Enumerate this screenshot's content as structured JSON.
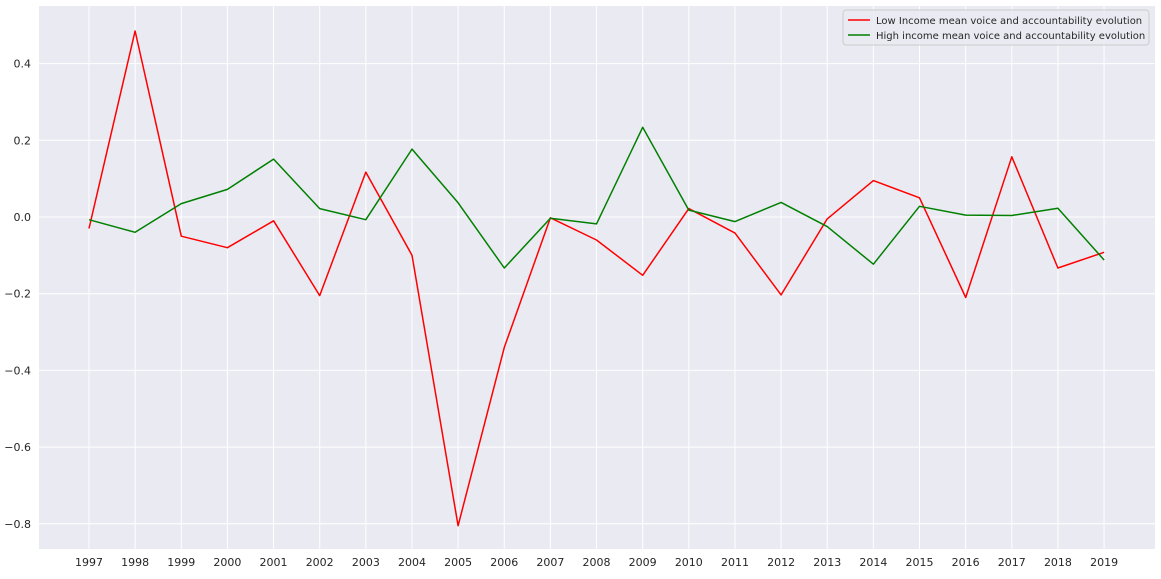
{
  "chart_data": {
    "type": "line",
    "title": "",
    "xlabel": "",
    "ylabel": "",
    "categories": [
      "1997",
      "1998",
      "1999",
      "2000",
      "2001",
      "2002",
      "2003",
      "2004",
      "2005",
      "2006",
      "2007",
      "2008",
      "2009",
      "2010",
      "2011",
      "2012",
      "2013",
      "2014",
      "2015",
      "2016",
      "2017",
      "2018",
      "2019"
    ],
    "yticks": [
      0.4,
      0.2,
      0.0,
      -0.2,
      -0.4,
      -0.6,
      -0.8
    ],
    "ytick_labels": [
      "0.4",
      "0.2",
      "0.0",
      "−0.2",
      "−0.4",
      "−0.6",
      "−0.8"
    ],
    "ylim": [
      -0.87,
      0.53
    ],
    "grid": true,
    "legend_position": "top-right",
    "background_color": "#eaeaf2",
    "series": [
      {
        "name": "Low Income mean voice and accountability evolution",
        "color": "#ff0000",
        "values": [
          -0.03,
          0.485,
          -0.05,
          -0.08,
          -0.01,
          -0.205,
          0.117,
          -0.1,
          -0.805,
          -0.34,
          -0.002,
          -0.06,
          -0.152,
          0.022,
          -0.042,
          -0.203,
          -0.005,
          0.095,
          0.05,
          -0.21,
          0.157,
          -0.133,
          -0.092
        ]
      },
      {
        "name": "High income mean voice and accountability evolution",
        "color": "#008000",
        "values": [
          -0.007,
          -0.04,
          0.035,
          0.072,
          0.151,
          0.022,
          -0.007,
          0.177,
          0.037,
          -0.133,
          -0.003,
          -0.018,
          0.234,
          0.018,
          -0.012,
          0.038,
          -0.025,
          -0.123,
          0.028,
          0.005,
          0.004,
          0.023,
          -0.112
        ]
      }
    ]
  }
}
